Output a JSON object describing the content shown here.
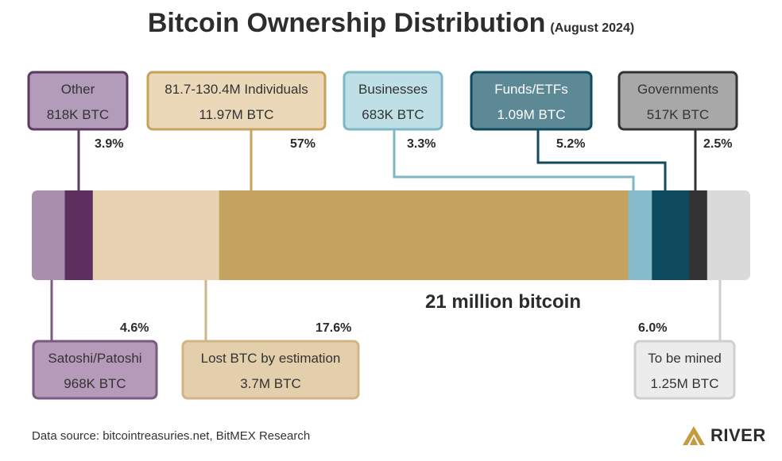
{
  "header": {
    "title": "Bitcoin Ownership Distribution",
    "subtitle": "(August 2024)"
  },
  "footer": {
    "source": "Data source: bitcointreasuries.net, BitMEX Research",
    "brand": "RIVER",
    "brand_color": "#c69b3f"
  },
  "chart_data": {
    "type": "bar",
    "orientation": "horizontal-stacked",
    "title": "Bitcoin Ownership Distribution",
    "subtitle": "(August 2024)",
    "total_label": "21 million bitcoin",
    "total_btc_millions": 21,
    "segments": [
      {
        "id": "satoshi",
        "name": "Satoshi/Patoshi",
        "value_label": "968K BTC",
        "percent": 4.6,
        "percent_label": "4.6%",
        "color": "#a98fae",
        "label_position": "bottom",
        "box_fill": "#b59bb9",
        "box_stroke": "#7b5a82"
      },
      {
        "id": "other",
        "name": "Other",
        "value_label": "818K BTC",
        "percent": 3.9,
        "percent_label": "3.9%",
        "color": "#5c2f5e",
        "label_position": "top",
        "box_fill": "#b39bba",
        "box_stroke": "#5e3a63"
      },
      {
        "id": "lost",
        "name": "Lost BTC by estimation",
        "value_label": "3.7M BTC",
        "percent": 17.6,
        "percent_label": "17.6%",
        "color": "#e6d1b0",
        "label_position": "bottom",
        "box_fill": "#e4cfac",
        "box_stroke": "#d2b586"
      },
      {
        "id": "individuals",
        "name": "81.7-130.4M Individuals",
        "value_label": "11.97M BTC",
        "percent": 57,
        "percent_label": "57%",
        "color": "#c4a25f",
        "label_position": "top",
        "box_fill": "#ead8b8",
        "box_stroke": "#c7a25b"
      },
      {
        "id": "businesses",
        "name": "Businesses",
        "value_label": "683K BTC",
        "percent": 3.3,
        "percent_label": "3.3%",
        "color": "#86bccb",
        "label_position": "top",
        "box_fill": "#bfdfe6",
        "box_stroke": "#7fb7c6"
      },
      {
        "id": "funds",
        "name": "Funds/ETFs",
        "value_label": "1.09M BTC",
        "percent": 5.2,
        "percent_label": "5.2%",
        "color": "#0e4b5e",
        "label_position": "top",
        "box_fill": "#5d8896",
        "box_stroke": "#0e4b5e"
      },
      {
        "id": "governments",
        "name": "Governments",
        "value_label": "517K BTC",
        "percent": 2.5,
        "percent_label": "2.5%",
        "color": "#333333",
        "label_position": "top",
        "box_fill": "#a8a8a8",
        "box_stroke": "#333333"
      },
      {
        "id": "mined",
        "name": "To be mined",
        "value_label": "1.25M BTC",
        "percent": 6.0,
        "percent_label": "6.0%",
        "color": "#dadada",
        "label_position": "bottom",
        "box_fill": "#ececec",
        "box_stroke": "#cfcfcf"
      }
    ]
  }
}
